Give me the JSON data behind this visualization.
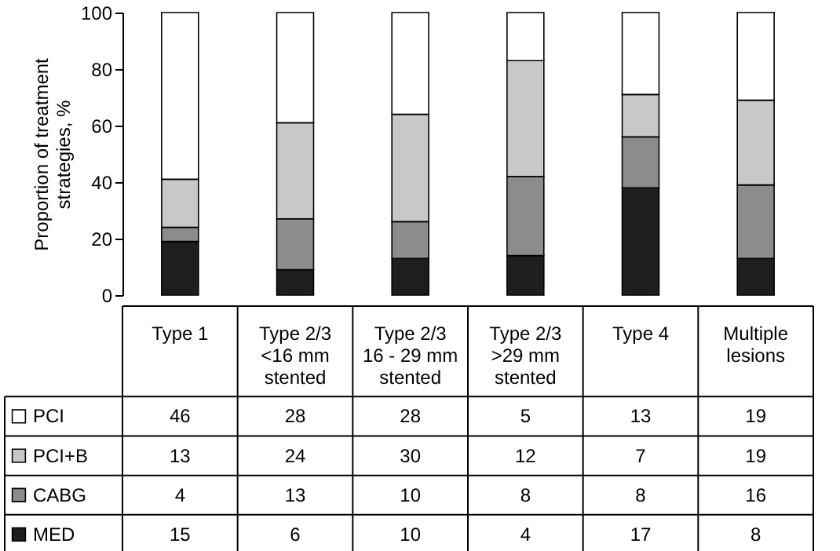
{
  "chart_data": {
    "type": "bar",
    "stacked": true,
    "ylabel": "Proportion of treatment strategies, %",
    "categories": [
      "Type 1",
      "Type 2/3 <16 mm stented",
      "Type 2/3 16 - 29 mm stented",
      "Type 2/3 >29 mm stented",
      "Type 4",
      "Multiple lesions"
    ],
    "series": [
      {
        "name": "MED",
        "color": "#1e1e1e",
        "values": [
          19,
          9,
          13,
          14,
          38,
          13
        ]
      },
      {
        "name": "CABG",
        "color": "#8c8c8c",
        "values": [
          5,
          18,
          13,
          28,
          18,
          26
        ]
      },
      {
        "name": "PCI+B",
        "color": "#c8c8c8",
        "values": [
          17,
          34,
          38,
          41,
          15,
          30
        ]
      },
      {
        "name": "PCI",
        "color": "#ffffff",
        "values": [
          59,
          39,
          36,
          17,
          29,
          31
        ]
      }
    ],
    "annotations": [
      "46",
      "28",
      "28",
      "5",
      "13",
      "19",
      "13",
      "24",
      "30",
      "12",
      "7",
      "19",
      "4",
      "13",
      "10",
      "8",
      "8",
      "16",
      "15",
      "6",
      "10",
      "4",
      "17",
      "8"
    ],
    "ylim": [
      0,
      100
    ],
    "yticks": [
      0,
      20,
      40,
      60,
      80,
      100
    ],
    "legend": "left"
  }
}
